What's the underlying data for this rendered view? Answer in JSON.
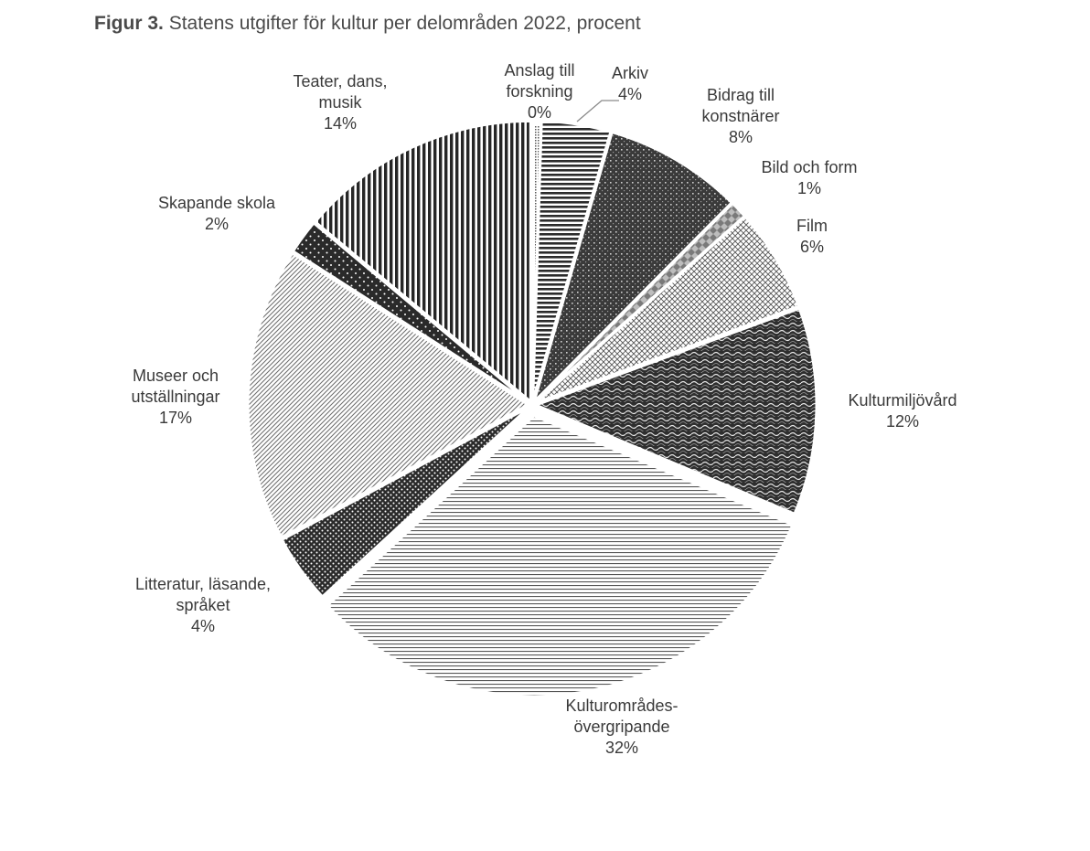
{
  "figure": {
    "label": "Figur 3.",
    "title": "Statens utgifter för kultur per delområden 2022, procent"
  },
  "chart_data": {
    "type": "pie",
    "title": "Statens utgifter för kultur per delområden 2022, procent",
    "unit": "%",
    "slices": [
      {
        "name": "Anslag till forskning",
        "label_lines": [
          "Anslag till",
          "forskning"
        ],
        "value": 0,
        "pct_label": "0%",
        "pattern": "dots-fine"
      },
      {
        "name": "Arkiv",
        "label_lines": [
          "Arkiv"
        ],
        "value": 4,
        "pct_label": "4%",
        "pattern": "hlines"
      },
      {
        "name": "Bidrag till konstnärer",
        "label_lines": [
          "Bidrag till",
          "konstnärer"
        ],
        "value": 8,
        "pct_label": "8%",
        "pattern": "grid-dark"
      },
      {
        "name": "Bild och form",
        "label_lines": [
          "Bild och form"
        ],
        "value": 1,
        "pct_label": "1%",
        "pattern": "diamond"
      },
      {
        "name": "Film",
        "label_lines": [
          "Film"
        ],
        "value": 6,
        "pct_label": "6%",
        "pattern": "cross-light"
      },
      {
        "name": "Kulturmiljövård",
        "label_lines": [
          "Kulturmiljövård"
        ],
        "value": 12,
        "pct_label": "12%",
        "pattern": "wave"
      },
      {
        "name": "Kulturområdes-övergripande",
        "label_lines": [
          "Kulturområdes-",
          "övergripande"
        ],
        "value": 32,
        "pct_label": "32%",
        "pattern": "hlines-light"
      },
      {
        "name": "Litteratur, läsande, språket",
        "label_lines": [
          "Litteratur, läsande,",
          "språket"
        ],
        "value": 4,
        "pct_label": "4%",
        "pattern": "dots-dark"
      },
      {
        "name": "Museer och utställningar",
        "label_lines": [
          "Museer och",
          "utställningar"
        ],
        "value": 17,
        "pct_label": "17%",
        "pattern": "diag-light"
      },
      {
        "name": "Skapande skola",
        "label_lines": [
          "Skapande skola"
        ],
        "value": 2,
        "pct_label": "2%",
        "pattern": "dots-sparse"
      },
      {
        "name": "Teater, dans, musik",
        "label_lines": [
          "Teater, dans,",
          "musik"
        ],
        "value": 14,
        "pct_label": "14%",
        "pattern": "vlines"
      }
    ]
  }
}
